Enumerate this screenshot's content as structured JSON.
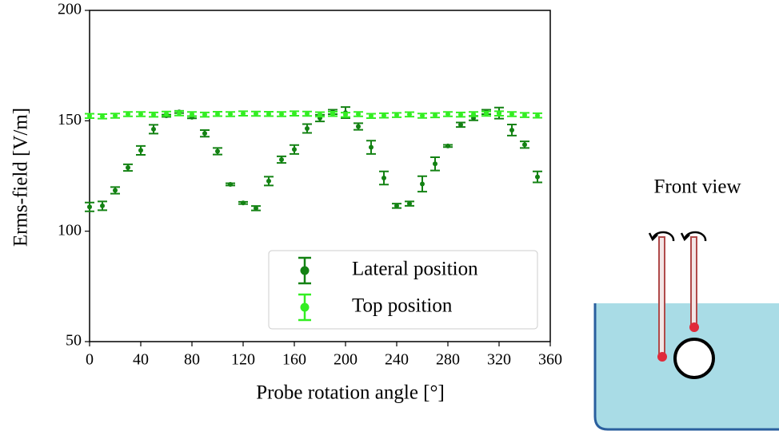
{
  "chart_data": {
    "type": "errorbar",
    "x_label": "Probe rotation angle [°]",
    "y_label": "Erms-field [V/m]",
    "xlim": [
      0,
      360
    ],
    "xticks": [
      0,
      40,
      80,
      120,
      160,
      200,
      240,
      280,
      320,
      360
    ],
    "ylim": [
      50,
      200
    ],
    "yticks": [
      50,
      100,
      150,
      200
    ],
    "legend": "lower right",
    "x": [
      0,
      10,
      20,
      30,
      40,
      50,
      60,
      70,
      80,
      90,
      100,
      110,
      120,
      130,
      140,
      150,
      160,
      170,
      180,
      190,
      200,
      210,
      220,
      230,
      240,
      250,
      260,
      270,
      280,
      290,
      300,
      310,
      320,
      330,
      340,
      350
    ],
    "series": [
      {
        "name": "Lateral position",
        "color": "#138213",
        "values": [
          111,
          111.5,
          118.5,
          128.8,
          136.6,
          146.2,
          152.3,
          154,
          151.6,
          144.3,
          136.2,
          121.2,
          112.8,
          110.4,
          122.7,
          132.4,
          137,
          146.5,
          151.2,
          154,
          153.7,
          147.4,
          138,
          124.1,
          111.5,
          112.5,
          121.4,
          130.5,
          138.6,
          148.2,
          151.2,
          154,
          153.5,
          145.8,
          139.2,
          124.6
        ],
        "errors": [
          2,
          2,
          1.5,
          1.5,
          2,
          2,
          0.5,
          0.5,
          0.5,
          1.5,
          1.5,
          0.5,
          0.5,
          1,
          2,
          1.5,
          2,
          2,
          1.5,
          1,
          2.5,
          1.5,
          3,
          3,
          1,
          1,
          3.5,
          3,
          0.5,
          1,
          1,
          1,
          2.5,
          2.5,
          1.5,
          2.5
        ]
      },
      {
        "name": "Top position",
        "color": "#33ee22",
        "values": [
          152.2,
          152,
          152.3,
          153,
          153,
          152.8,
          153.2,
          153.4,
          153,
          152.8,
          153.1,
          153,
          153.3,
          153.2,
          153.1,
          153,
          153.3,
          153.2,
          152.9,
          153.1,
          152.7,
          153,
          152.2,
          152.4,
          152.6,
          152.9,
          152.3,
          152.5,
          153,
          152.8,
          153,
          153.2,
          153.3,
          153,
          152.6,
          152.4
        ],
        "errors": [
          1,
          1,
          1,
          1,
          1,
          1,
          1,
          1,
          1,
          1,
          1,
          1,
          1,
          1,
          1,
          1,
          1,
          1,
          1,
          1,
          1,
          1,
          1,
          1,
          1,
          1,
          1,
          1,
          1,
          1,
          1,
          1,
          1,
          1,
          1,
          1
        ]
      }
    ]
  },
  "diagram": {
    "label": "Front view"
  }
}
